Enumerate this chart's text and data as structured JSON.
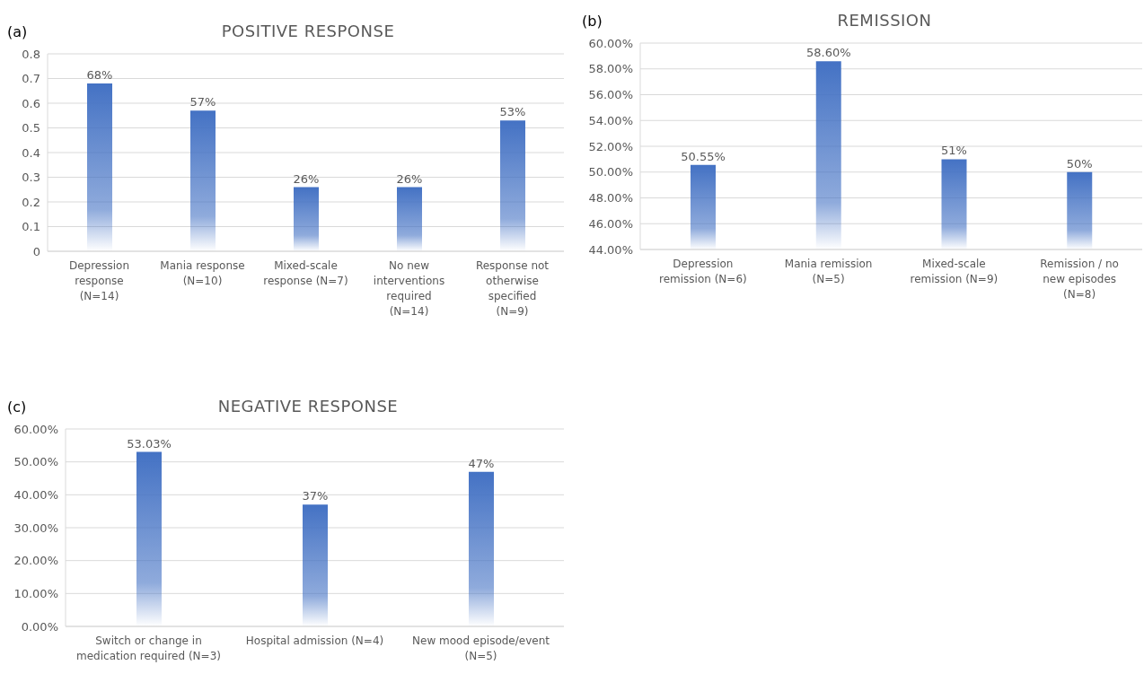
{
  "chart_data": [
    {
      "type": "bar",
      "title": "POSITIVE RESPONSE",
      "annotations": [
        "(a)"
      ],
      "categories": [
        "Depression response (N=14)",
        "Mania response (N=10)",
        "Mixed-scale response (N=7)",
        "No new interventions required (N=14)",
        "Response not otherwise specified (N=9)"
      ],
      "values": [
        0.68,
        0.57,
        0.26,
        0.26,
        0.53
      ],
      "value_labels": [
        "68%",
        "57%",
        "26%",
        "26%",
        "53%"
      ],
      "color": "#4472c4",
      "ylim": [
        0,
        0.8
      ],
      "yticks": [
        0,
        0.1,
        0.2,
        0.3,
        0.4,
        0.5,
        0.6,
        0.7,
        0.8
      ],
      "grid": "y"
    },
    {
      "type": "bar",
      "title": "REMISSION",
      "annotations": [
        "(b)"
      ],
      "categories": [
        "Depression remission (N=6)",
        "Mania remission (N=5)",
        "Mixed-scale remission (N=9)",
        "Remission / no new episodes (N=8)"
      ],
      "values": [
        50.55,
        58.6,
        51,
        50
      ],
      "value_labels": [
        "50.55%",
        "58.60%",
        "51%",
        "50%"
      ],
      "color": "#4472c4",
      "ylim": [
        44,
        60
      ],
      "yticks": [
        {
          "value": 44,
          "label": "44.00%"
        },
        {
          "value": 46,
          "label": "46.00%"
        },
        {
          "value": 48,
          "label": "48.00%"
        },
        {
          "value": 50,
          "label": "50.00%"
        },
        {
          "value": 52,
          "label": "52.00%"
        },
        {
          "value": 54,
          "label": "54.00%"
        },
        {
          "value": 56,
          "label": "56.00%"
        },
        {
          "value": 58,
          "label": "58.00%"
        },
        {
          "value": 60,
          "label": "60.00%"
        }
      ],
      "grid": "y"
    },
    {
      "type": "bar",
      "title": "NEGATIVE RESPONSE",
      "annotations": [
        "(c)"
      ],
      "categories": [
        "Switch or change in medication required (N=3)",
        "Hospital admission (N=4)",
        "New mood episode/event (N=5)"
      ],
      "values": [
        53.03,
        37,
        47
      ],
      "value_labels": [
        "53.03%",
        "37%",
        "47%"
      ],
      "color": "#4472c4",
      "ylim": [
        0,
        60
      ],
      "yticks": [
        {
          "value": 0,
          "label": "0.00%"
        },
        {
          "value": 10,
          "label": "10.00%"
        },
        {
          "value": 20,
          "label": "20.00%"
        },
        {
          "value": 30,
          "label": "30.00%"
        },
        {
          "value": 40,
          "label": "40.00%"
        },
        {
          "value": 50,
          "label": "50.00%"
        },
        {
          "value": 60,
          "label": "60.00%"
        }
      ],
      "grid": "y"
    }
  ]
}
